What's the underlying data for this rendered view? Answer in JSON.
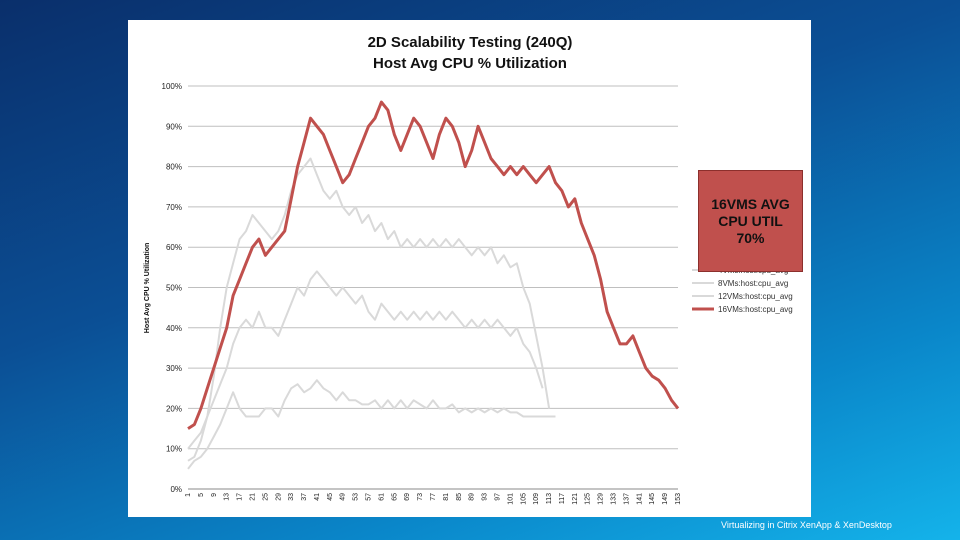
{
  "footer": "Virtualizing in Citrix XenApp & XenDesktop",
  "callout": {
    "lines": [
      "16VMS AVG",
      "CPU UTIL",
      "70%"
    ],
    "color": "#c0504d"
  },
  "chart_data": {
    "type": "line",
    "title": [
      "2D Scalability Testing (240Q)",
      "Host Avg CPU % Utilization"
    ],
    "ylabel": "Host Avg CPU % Utilization",
    "xlabel": "",
    "ylim": [
      0,
      100
    ],
    "yticks": [
      "0%",
      "10%",
      "20%",
      "30%",
      "40%",
      "50%",
      "60%",
      "70%",
      "80%",
      "90%",
      "100%"
    ],
    "xlim": [
      1,
      153
    ],
    "xticks": [
      "1",
      "5",
      "9",
      "13",
      "17",
      "21",
      "25",
      "29",
      "33",
      "37",
      "41",
      "45",
      "49",
      "53",
      "57",
      "61",
      "65",
      "69",
      "73",
      "77",
      "81",
      "85",
      "89",
      "93",
      "97",
      "101",
      "105",
      "109",
      "113",
      "117",
      "121",
      "125",
      "129",
      "133",
      "137",
      "141",
      "145",
      "149",
      "153"
    ],
    "grid": true,
    "legend_position": "right",
    "series": [
      {
        "name": "4VMs:host:cpu_avg",
        "color": "#d9d9d9",
        "points": [
          [
            1,
            5
          ],
          [
            3,
            7
          ],
          [
            5,
            8
          ],
          [
            7,
            10
          ],
          [
            9,
            13
          ],
          [
            11,
            16
          ],
          [
            13,
            20
          ],
          [
            15,
            24
          ],
          [
            17,
            20
          ],
          [
            19,
            18
          ],
          [
            21,
            18
          ],
          [
            23,
            18
          ],
          [
            25,
            20
          ],
          [
            27,
            20
          ],
          [
            29,
            18
          ],
          [
            31,
            22
          ],
          [
            33,
            25
          ],
          [
            35,
            26
          ],
          [
            37,
            24
          ],
          [
            39,
            25
          ],
          [
            41,
            27
          ],
          [
            43,
            25
          ],
          [
            45,
            24
          ],
          [
            47,
            22
          ],
          [
            49,
            24
          ],
          [
            51,
            22
          ],
          [
            53,
            22
          ],
          [
            55,
            21
          ],
          [
            57,
            21
          ],
          [
            59,
            22
          ],
          [
            61,
            20
          ],
          [
            63,
            22
          ],
          [
            65,
            20
          ],
          [
            67,
            22
          ],
          [
            69,
            20
          ],
          [
            71,
            22
          ],
          [
            73,
            21
          ],
          [
            75,
            20
          ],
          [
            77,
            22
          ],
          [
            79,
            20
          ],
          [
            81,
            20
          ],
          [
            83,
            21
          ],
          [
            85,
            19
          ],
          [
            87,
            20
          ],
          [
            89,
            19
          ],
          [
            91,
            20
          ],
          [
            93,
            19
          ],
          [
            95,
            20
          ],
          [
            97,
            19
          ],
          [
            99,
            20
          ],
          [
            101,
            19
          ],
          [
            103,
            19
          ],
          [
            105,
            18
          ],
          [
            107,
            18
          ],
          [
            109,
            18
          ],
          [
            111,
            18
          ],
          [
            113,
            18
          ],
          [
            115,
            18
          ]
        ]
      },
      {
        "name": "8VMs:host:cpu_avg",
        "color": "#d9d9d9",
        "points": [
          [
            1,
            10
          ],
          [
            3,
            12
          ],
          [
            5,
            14
          ],
          [
            7,
            18
          ],
          [
            9,
            22
          ],
          [
            11,
            26
          ],
          [
            13,
            30
          ],
          [
            15,
            36
          ],
          [
            17,
            40
          ],
          [
            19,
            42
          ],
          [
            21,
            40
          ],
          [
            23,
            44
          ],
          [
            25,
            40
          ],
          [
            27,
            40
          ],
          [
            29,
            38
          ],
          [
            31,
            42
          ],
          [
            33,
            46
          ],
          [
            35,
            50
          ],
          [
            37,
            48
          ],
          [
            39,
            52
          ],
          [
            41,
            54
          ],
          [
            43,
            52
          ],
          [
            45,
            50
          ],
          [
            47,
            48
          ],
          [
            49,
            50
          ],
          [
            51,
            48
          ],
          [
            53,
            46
          ],
          [
            55,
            48
          ],
          [
            57,
            44
          ],
          [
            59,
            42
          ],
          [
            61,
            46
          ],
          [
            63,
            44
          ],
          [
            65,
            42
          ],
          [
            67,
            44
          ],
          [
            69,
            42
          ],
          [
            71,
            44
          ],
          [
            73,
            42
          ],
          [
            75,
            44
          ],
          [
            77,
            42
          ],
          [
            79,
            44
          ],
          [
            81,
            42
          ],
          [
            83,
            44
          ],
          [
            85,
            42
          ],
          [
            87,
            40
          ],
          [
            89,
            42
          ],
          [
            91,
            40
          ],
          [
            93,
            42
          ],
          [
            95,
            40
          ],
          [
            97,
            42
          ],
          [
            99,
            40
          ],
          [
            101,
            38
          ],
          [
            103,
            40
          ],
          [
            105,
            36
          ],
          [
            107,
            34
          ],
          [
            109,
            30
          ],
          [
            111,
            25
          ]
        ]
      },
      {
        "name": "12VMs:host:cpu_avg",
        "color": "#d9d9d9",
        "points": [
          [
            1,
            7
          ],
          [
            3,
            8
          ],
          [
            5,
            12
          ],
          [
            7,
            18
          ],
          [
            9,
            28
          ],
          [
            11,
            40
          ],
          [
            13,
            50
          ],
          [
            15,
            56
          ],
          [
            17,
            62
          ],
          [
            19,
            64
          ],
          [
            21,
            68
          ],
          [
            23,
            66
          ],
          [
            25,
            64
          ],
          [
            27,
            62
          ],
          [
            29,
            64
          ],
          [
            31,
            68
          ],
          [
            33,
            74
          ],
          [
            35,
            78
          ],
          [
            37,
            80
          ],
          [
            39,
            82
          ],
          [
            41,
            78
          ],
          [
            43,
            74
          ],
          [
            45,
            72
          ],
          [
            47,
            74
          ],
          [
            49,
            70
          ],
          [
            51,
            68
          ],
          [
            53,
            70
          ],
          [
            55,
            66
          ],
          [
            57,
            68
          ],
          [
            59,
            64
          ],
          [
            61,
            66
          ],
          [
            63,
            62
          ],
          [
            65,
            64
          ],
          [
            67,
            60
          ],
          [
            69,
            62
          ],
          [
            71,
            60
          ],
          [
            73,
            62
          ],
          [
            75,
            60
          ],
          [
            77,
            62
          ],
          [
            79,
            60
          ],
          [
            81,
            62
          ],
          [
            83,
            60
          ],
          [
            85,
            62
          ],
          [
            87,
            60
          ],
          [
            89,
            58
          ],
          [
            91,
            60
          ],
          [
            93,
            58
          ],
          [
            95,
            60
          ],
          [
            97,
            56
          ],
          [
            99,
            58
          ],
          [
            101,
            55
          ],
          [
            103,
            56
          ],
          [
            105,
            50
          ],
          [
            107,
            46
          ],
          [
            109,
            38
          ],
          [
            111,
            30
          ],
          [
            113,
            20
          ]
        ]
      },
      {
        "name": "16VMs:host:cpu_avg",
        "color": "#c0504d",
        "points": [
          [
            1,
            15
          ],
          [
            3,
            16
          ],
          [
            5,
            20
          ],
          [
            7,
            25
          ],
          [
            9,
            30
          ],
          [
            11,
            35
          ],
          [
            13,
            40
          ],
          [
            15,
            48
          ],
          [
            17,
            52
          ],
          [
            19,
            56
          ],
          [
            21,
            60
          ],
          [
            23,
            62
          ],
          [
            25,
            58
          ],
          [
            27,
            60
          ],
          [
            29,
            62
          ],
          [
            31,
            64
          ],
          [
            33,
            72
          ],
          [
            35,
            80
          ],
          [
            37,
            86
          ],
          [
            39,
            92
          ],
          [
            41,
            90
          ],
          [
            43,
            88
          ],
          [
            45,
            84
          ],
          [
            47,
            80
          ],
          [
            49,
            76
          ],
          [
            51,
            78
          ],
          [
            53,
            82
          ],
          [
            55,
            86
          ],
          [
            57,
            90
          ],
          [
            59,
            92
          ],
          [
            61,
            96
          ],
          [
            63,
            94
          ],
          [
            65,
            88
          ],
          [
            67,
            84
          ],
          [
            69,
            88
          ],
          [
            71,
            92
          ],
          [
            73,
            90
          ],
          [
            75,
            86
          ],
          [
            77,
            82
          ],
          [
            79,
            88
          ],
          [
            81,
            92
          ],
          [
            83,
            90
          ],
          [
            85,
            86
          ],
          [
            87,
            80
          ],
          [
            89,
            84
          ],
          [
            91,
            90
          ],
          [
            93,
            86
          ],
          [
            95,
            82
          ],
          [
            97,
            80
          ],
          [
            99,
            78
          ],
          [
            101,
            80
          ],
          [
            103,
            78
          ],
          [
            105,
            80
          ],
          [
            107,
            78
          ],
          [
            109,
            76
          ],
          [
            111,
            78
          ],
          [
            113,
            80
          ],
          [
            115,
            76
          ],
          [
            117,
            74
          ],
          [
            119,
            70
          ],
          [
            121,
            72
          ],
          [
            123,
            66
          ],
          [
            125,
            62
          ],
          [
            127,
            58
          ],
          [
            129,
            52
          ],
          [
            131,
            44
          ],
          [
            133,
            40
          ],
          [
            135,
            36
          ],
          [
            137,
            36
          ],
          [
            139,
            38
          ],
          [
            141,
            34
          ],
          [
            143,
            30
          ],
          [
            145,
            28
          ],
          [
            147,
            27
          ],
          [
            149,
            25
          ],
          [
            151,
            22
          ],
          [
            153,
            20
          ]
        ]
      }
    ],
    "annotation": {
      "text": "16VMS AVG CPU UTIL 70%"
    }
  }
}
